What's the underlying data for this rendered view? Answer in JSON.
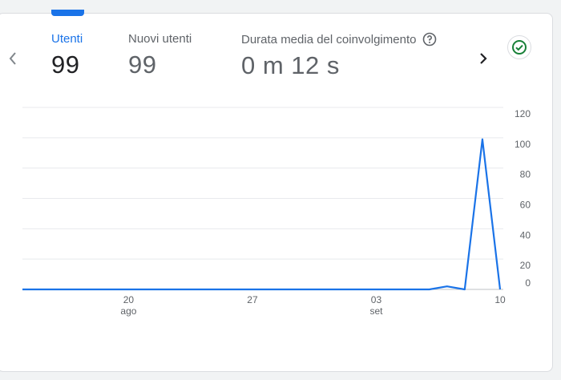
{
  "metrics": [
    {
      "label": "Utenti",
      "value": "99",
      "active": true
    },
    {
      "label": "Nuovi utenti",
      "value": "99",
      "active": false
    },
    {
      "label": "Durata media del coinvolgimento",
      "value": "0 m 12 s",
      "active": false
    }
  ],
  "icons": {
    "prev": "chevron-left-icon",
    "next": "chevron-right-icon",
    "help": "help-circle-icon",
    "status": "check-circle-icon"
  },
  "colors": {
    "accent": "#1a73e8",
    "line": "#1a73e8",
    "status_green": "#188038"
  },
  "chart_data": {
    "type": "line",
    "title": "",
    "xlabel": "",
    "ylabel": "",
    "ylim": [
      0,
      120
    ],
    "y_ticks": [
      0,
      20,
      40,
      60,
      80,
      100,
      120
    ],
    "x_tick_labels": [
      {
        "day": "20",
        "month": "ago",
        "index": 6
      },
      {
        "day": "27",
        "month": "",
        "index": 13
      },
      {
        "day": "03",
        "month": "set",
        "index": 20
      },
      {
        "day": "10",
        "month": "",
        "index": 27
      }
    ],
    "grid": true,
    "series": [
      {
        "x": [
          "2024-08-14",
          "2024-08-15",
          "2024-08-16",
          "2024-08-17",
          "2024-08-18",
          "2024-08-19",
          "2024-08-20",
          "2024-08-21",
          "2024-08-22",
          "2024-08-23",
          "2024-08-24",
          "2024-08-25",
          "2024-08-26",
          "2024-08-27",
          "2024-08-28",
          "2024-08-29",
          "2024-08-30",
          "2024-08-31",
          "2024-09-01",
          "2024-09-02",
          "2024-09-03",
          "2024-09-04",
          "2024-09-05",
          "2024-09-06",
          "2024-09-07",
          "2024-09-08",
          "2024-09-09",
          "2024-09-10"
        ],
        "values": [
          0,
          0,
          0,
          0,
          0,
          0,
          0,
          0,
          0,
          0,
          0,
          0,
          0,
          0,
          0,
          0,
          0,
          0,
          0,
          0,
          0,
          0,
          0,
          0,
          2,
          0,
          99,
          0
        ]
      }
    ]
  }
}
